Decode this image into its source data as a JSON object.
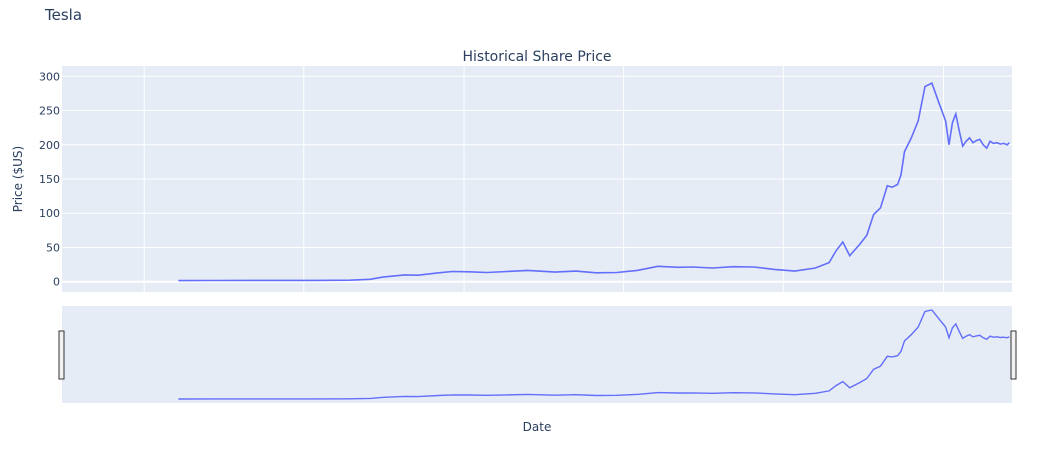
{
  "app": {
    "title": "Tesla"
  },
  "chart_data": {
    "type": "line",
    "title": "Historical Share Price",
    "xlabel": "Date",
    "ylabel": "Price ($US)",
    "ylim": [
      -15,
      315
    ],
    "yticks": [
      0,
      50,
      100,
      150,
      200,
      250,
      300
    ],
    "ytick_labels": [
      "0",
      "50",
      "100",
      "150",
      "200",
      "250",
      "300"
    ],
    "xlim": [
      2008.8,
      2022.67
    ],
    "x_gridlines": [
      2010,
      2012.33,
      2014.67,
      2017,
      2019.33,
      2021.67
    ],
    "grid": true,
    "legend": "none",
    "range_slider": true,
    "series": [
      {
        "name": "Tesla",
        "color": "#636efa",
        "x": [
          2010.5,
          2011.0,
          2011.5,
          2012.0,
          2012.5,
          2013.0,
          2013.3,
          2013.5,
          2013.8,
          2014.0,
          2014.3,
          2014.5,
          2014.75,
          2015.0,
          2015.3,
          2015.6,
          2016.0,
          2016.3,
          2016.6,
          2016.9,
          2017.2,
          2017.5,
          2017.8,
          2018.0,
          2018.3,
          2018.6,
          2018.9,
          2019.2,
          2019.5,
          2019.8,
          2020.0,
          2020.1,
          2020.2,
          2020.3,
          2020.45,
          2020.55,
          2020.65,
          2020.75,
          2020.85,
          2020.92,
          2021.0,
          2021.05,
          2021.1,
          2021.2,
          2021.3,
          2021.4,
          2021.5,
          2021.6,
          2021.7,
          2021.75,
          2021.8,
          2021.85,
          2021.9,
          2021.95,
          2022.0,
          2022.05,
          2022.1,
          2022.15,
          2022.2,
          2022.25,
          2022.3,
          2022.35,
          2022.4,
          2022.45,
          2022.5,
          2022.55,
          2022.6,
          2022.63
        ],
        "values": [
          1.6,
          1.8,
          1.9,
          2.0,
          2.0,
          2.3,
          3.5,
          7.0,
          10.0,
          9.5,
          13.0,
          15.0,
          14.5,
          13.5,
          15.0,
          16.5,
          14.0,
          15.5,
          13.0,
          13.5,
          16.5,
          22.5,
          21.0,
          21.5,
          20.0,
          22.0,
          21.5,
          18.0,
          15.5,
          20.0,
          28.0,
          45.0,
          58.0,
          38.0,
          55.0,
          68.0,
          98.0,
          108.0,
          140.0,
          138.0,
          142.0,
          156.0,
          190.0,
          210.0,
          235.0,
          285.0,
          290.0,
          262.0,
          235.0,
          200.0,
          232.0,
          245.0,
          220.0,
          198.0,
          205.0,
          210.0,
          203.0,
          206.0,
          208.0,
          200.0,
          195.0,
          205.0,
          202.0,
          203.0,
          201.0,
          202.0,
          200.0,
          203.0
        ]
      }
    ]
  }
}
